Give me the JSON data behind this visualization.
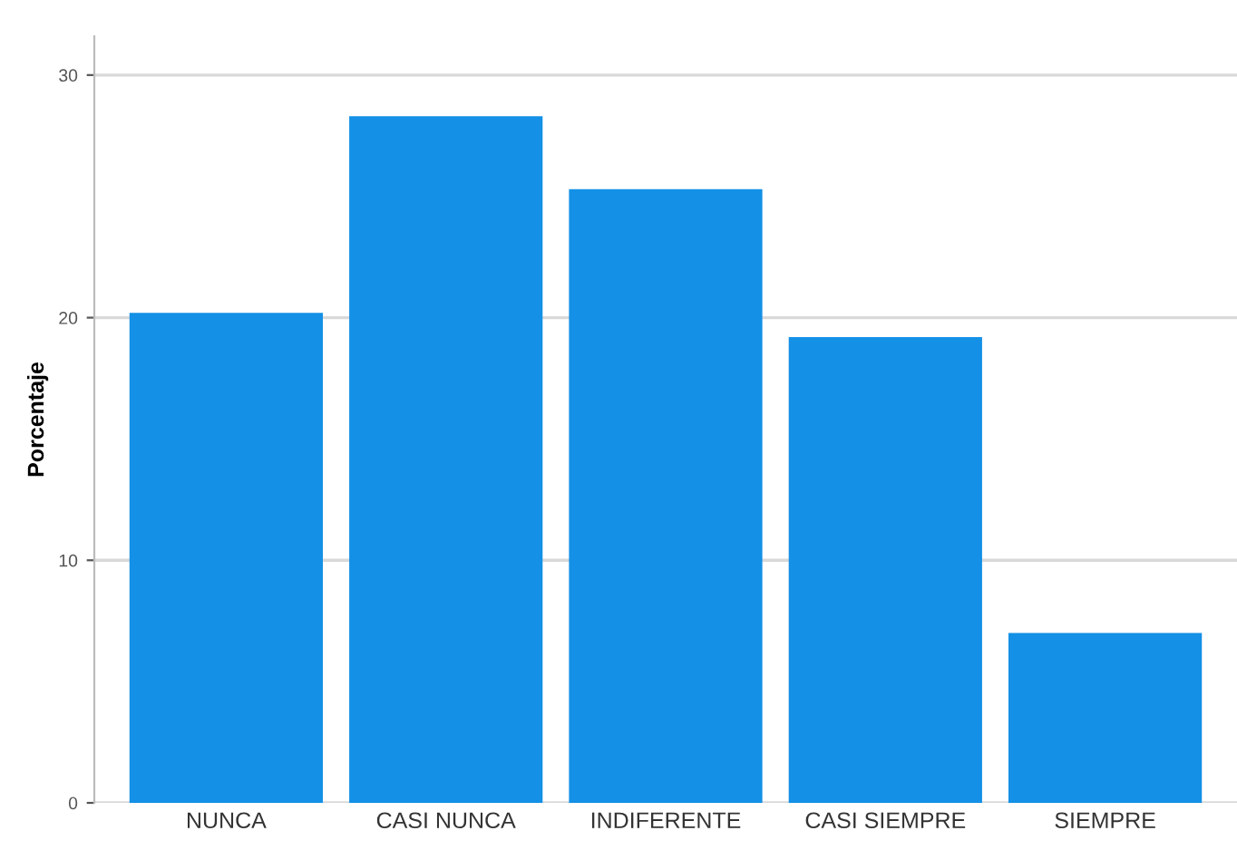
{
  "chart_data": {
    "type": "bar",
    "ylabel": "Porcentaje",
    "categories": [
      "NUNCA",
      "CASI NUNCA",
      "INDIFERENTE",
      "CASI SIEMPRE",
      "SIEMPRE"
    ],
    "values": [
      20.2,
      28.3,
      25.3,
      19.2,
      7.0
    ],
    "color": "#1490e6",
    "ylim": [
      0,
      31.6
    ],
    "yticks": [
      0,
      10,
      20,
      30
    ],
    "grid": "y"
  }
}
